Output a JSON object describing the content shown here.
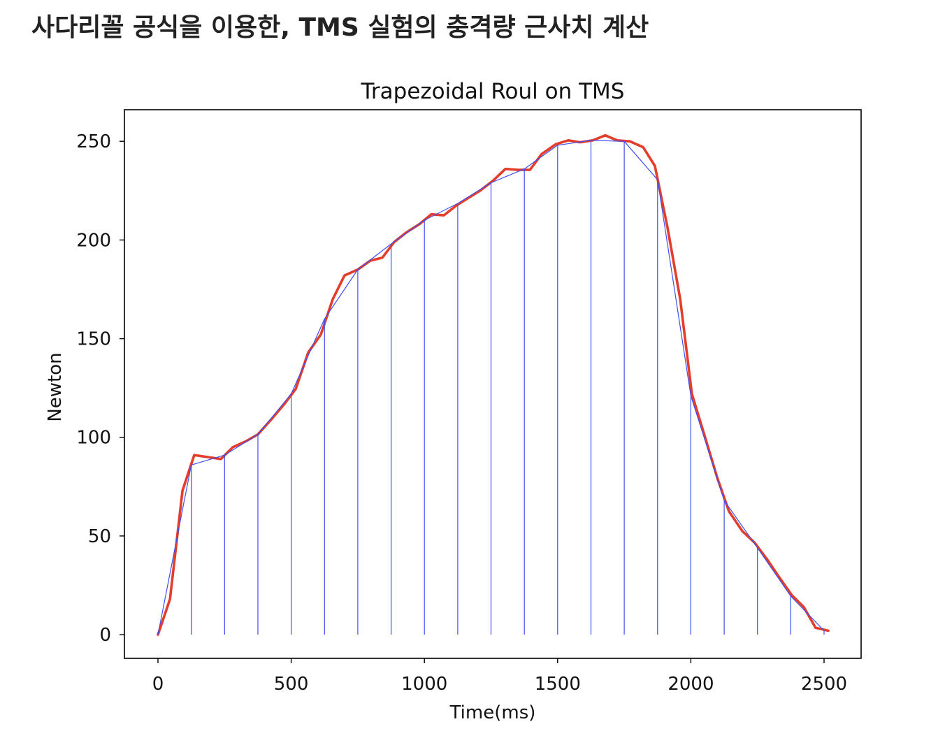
{
  "heading": "사다리꼴 공식을 이용한, TMS 실험의 충격량 근사치 계산",
  "chart_data": {
    "type": "line",
    "title": "Trapezoidal Roul on TMS",
    "xlabel": "Time(ms)",
    "ylabel": "Newton",
    "xlim": [
      -126,
      2639
    ],
    "ylim": [
      -12,
      266
    ],
    "xticks": [
      0,
      500,
      1000,
      1500,
      2000,
      2500
    ],
    "yticks": [
      0,
      50,
      100,
      150,
      200,
      250
    ],
    "grid": false,
    "legend": "none",
    "series": [
      {
        "color": "#e43d2b",
        "x": [
          0,
          45,
          92,
          136,
          186,
          236,
          281,
          330,
          375,
          425,
          472,
          517,
          564,
          611,
          656,
          700,
          750,
          797,
          842,
          887,
          934,
          981,
          1026,
          1073,
          1120,
          1167,
          1209,
          1257,
          1304,
          1351,
          1396,
          1440,
          1493,
          1540,
          1584,
          1632,
          1679,
          1723,
          1771,
          1821,
          1865,
          1912,
          1960,
          2004,
          2051,
          2099,
          2143,
          2193,
          2240,
          2287,
          2332,
          2379,
          2424,
          2468,
          2516
        ],
        "y": [
          0,
          18,
          73,
          91,
          90,
          89,
          95,
          98,
          101.5,
          109,
          116.5,
          124.5,
          143,
          152,
          170,
          182,
          185,
          189.5,
          191,
          199,
          204,
          208,
          213,
          212.5,
          217.5,
          221.5,
          225,
          230,
          236,
          235.5,
          235.5,
          243.5,
          248.5,
          250.5,
          249.5,
          250.5,
          253,
          250.5,
          250,
          247,
          237.5,
          206.5,
          170,
          122,
          101,
          79.5,
          62.5,
          52.5,
          46.5,
          38,
          29,
          20,
          14,
          3.5,
          2
        ]
      },
      {
        "color": "#3f4ff0",
        "drop_lines": true,
        "x": [
          0,
          125,
          250,
          375,
          500,
          625,
          750,
          875,
          1000,
          1125,
          1250,
          1375,
          1500,
          1625,
          1750,
          1875,
          2000,
          2125,
          2250,
          2375,
          2500
        ],
        "y": [
          0,
          86,
          91,
          101.5,
          122,
          160,
          185,
          198,
          210,
          218.5,
          229,
          236,
          248,
          250.5,
          250,
          230.5,
          121,
          68,
          44,
          19.5,
          2
        ]
      }
    ]
  }
}
